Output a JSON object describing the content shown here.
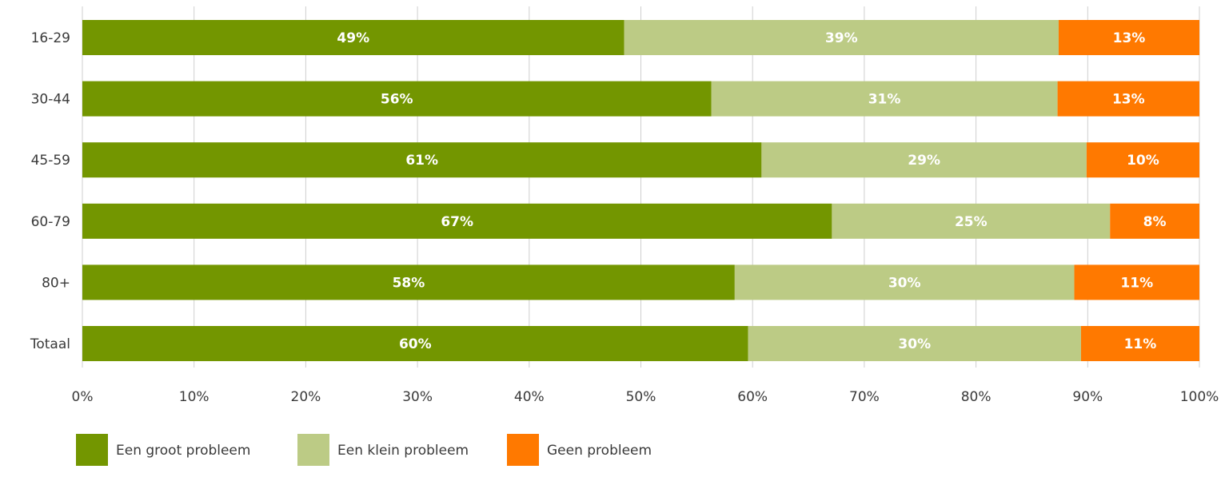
{
  "chart_data": {
    "type": "bar",
    "orientation": "horizontal",
    "stacked": true,
    "categories": [
      "16-29",
      "30-44",
      "45-59",
      "60-79",
      "80+",
      "Totaal"
    ],
    "series": [
      {
        "name": "Een groot probleem",
        "color": "#739600",
        "values": [
          48.5,
          56.3,
          60.8,
          67.1,
          58.4,
          59.6
        ],
        "labels": [
          "49%",
          "56%",
          "61%",
          "67%",
          "58%",
          "60%"
        ]
      },
      {
        "name": "Een klein probleem",
        "color": "#bccb85",
        "values": [
          38.9,
          31.0,
          29.1,
          24.9,
          30.4,
          29.8
        ],
        "labels": [
          "39%",
          "31%",
          "29%",
          "25%",
          "30%",
          "30%"
        ]
      },
      {
        "name": "Geen probleem",
        "color": "#ff7900",
        "values": [
          12.6,
          12.7,
          10.1,
          8.0,
          11.2,
          10.6
        ],
        "labels": [
          "13%",
          "13%",
          "10%",
          "8%",
          "11%",
          "11%"
        ]
      }
    ],
    "xlim": [
      0,
      100
    ],
    "xticks": [
      "0%",
      "10%",
      "20%",
      "30%",
      "40%",
      "50%",
      "60%",
      "70%",
      "80%",
      "90%",
      "100%"
    ],
    "grid": "vertical",
    "legend_position": "bottom-left",
    "title": "",
    "xlabel": "",
    "ylabel": ""
  }
}
